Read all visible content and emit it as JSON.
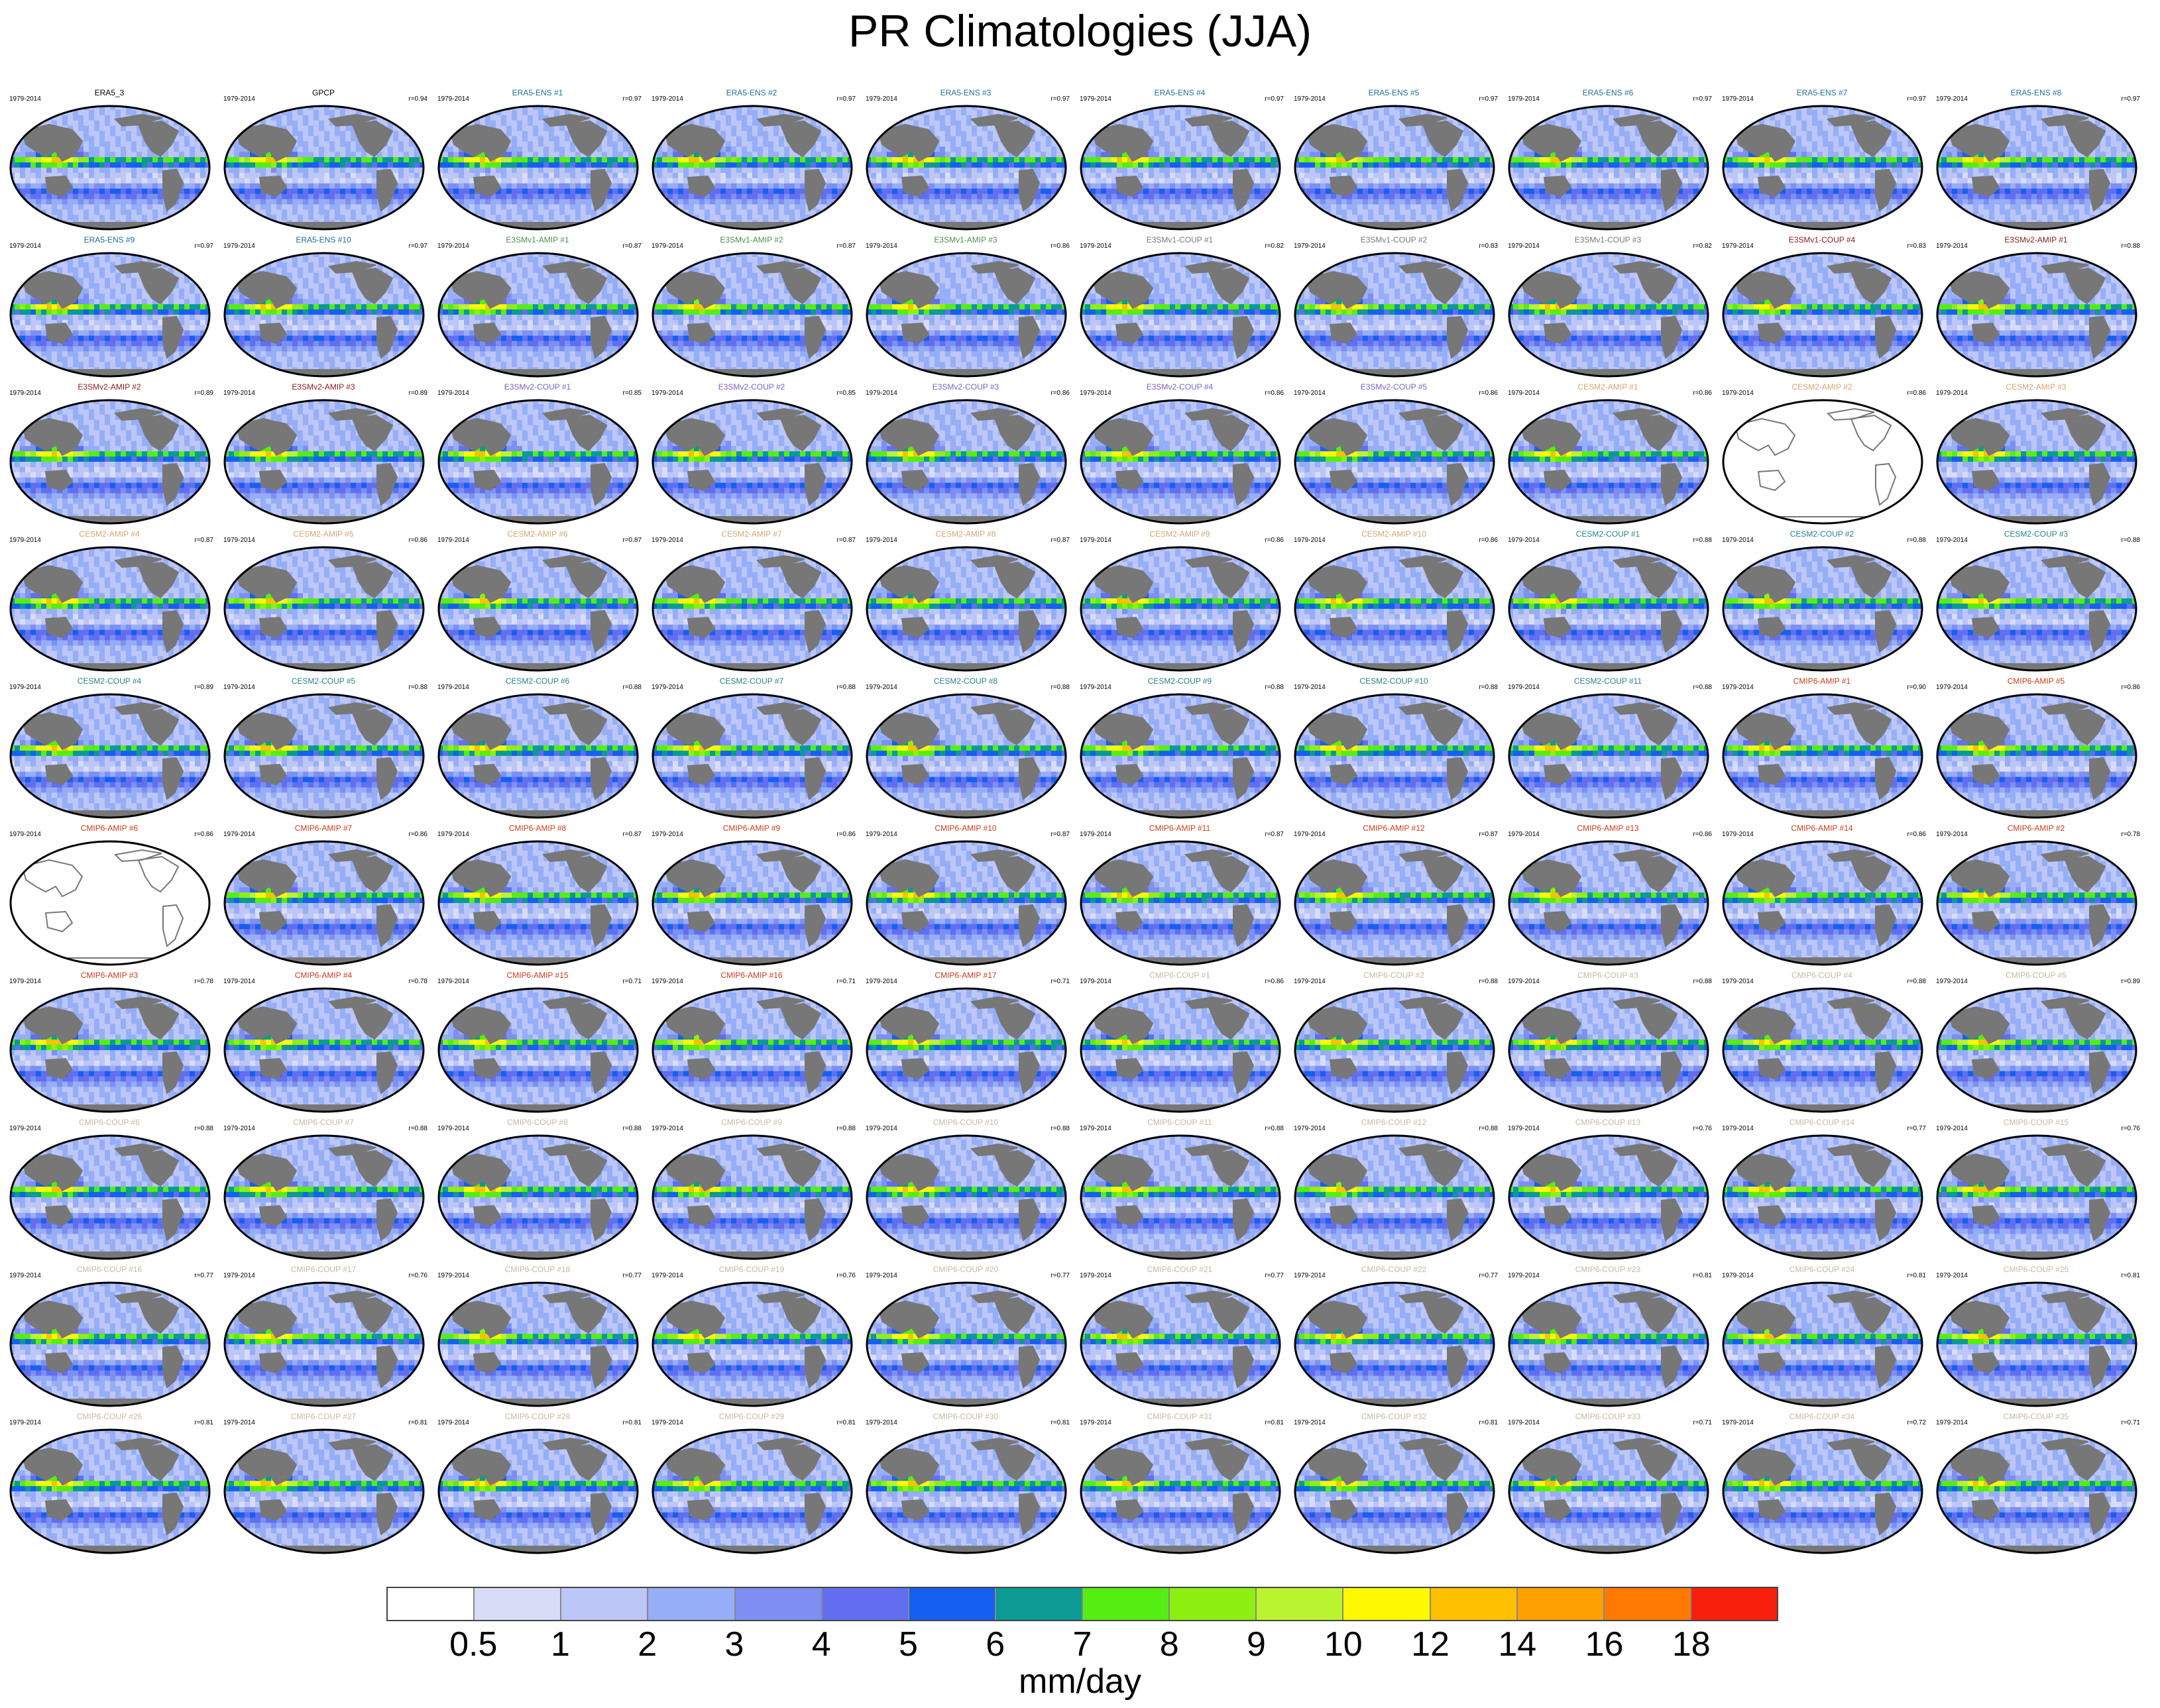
{
  "title": "PR Climatologies (JJA)",
  "period": "1979-2014",
  "panels": [
    {
      "label": "ERA5_3",
      "r": "",
      "color": "#000000",
      "blank": false
    },
    {
      "label": "GPCP",
      "r": "r=0.94",
      "color": "#000000",
      "blank": false
    },
    {
      "label": "ERA5-ENS   #1",
      "r": "r=0.97",
      "color": "#1f6f95",
      "blank": false
    },
    {
      "label": "ERA5-ENS   #2",
      "r": "r=0.97",
      "color": "#1f6f95",
      "blank": false
    },
    {
      "label": "ERA5-ENS   #3",
      "r": "r=0.97",
      "color": "#1f6f95",
      "blank": false
    },
    {
      "label": "ERA5-ENS   #4",
      "r": "r=0.97",
      "color": "#1f6f95",
      "blank": false
    },
    {
      "label": "ERA5-ENS   #5",
      "r": "r=0.97",
      "color": "#1f6f95",
      "blank": false
    },
    {
      "label": "ERA5-ENS   #6",
      "r": "r=0.97",
      "color": "#1f6f95",
      "blank": false
    },
    {
      "label": "ERA5-ENS   #7",
      "r": "r=0.97",
      "color": "#1f6f95",
      "blank": false
    },
    {
      "label": "ERA5-ENS   #8",
      "r": "r=0.97",
      "color": "#1f6f95",
      "blank": false
    },
    {
      "label": "ERA5-ENS   #9",
      "r": "r=0.97",
      "color": "#1f6f95",
      "blank": false
    },
    {
      "label": "ERA5-ENS   #10",
      "r": "r=0.97",
      "color": "#1f6f95",
      "blank": false
    },
    {
      "label": "E3SMv1-AMIP #1",
      "r": "r=0.87",
      "color": "#4f8f4f",
      "blank": false
    },
    {
      "label": "E3SMv1-AMIP #2",
      "r": "r=0.87",
      "color": "#4f8f4f",
      "blank": false
    },
    {
      "label": "E3SMv1-AMIP #3",
      "r": "r=0.86",
      "color": "#4f8f4f",
      "blank": false
    },
    {
      "label": "E3SMv1-COUP #1",
      "r": "r=0.82",
      "color": "#777777",
      "blank": false
    },
    {
      "label": "E3SMv1-COUP #2",
      "r": "r=0.83",
      "color": "#777777",
      "blank": false
    },
    {
      "label": "E3SMv1-COUP #3",
      "r": "r=0.82",
      "color": "#777777",
      "blank": false
    },
    {
      "label": "E3SMv1-COUP #4",
      "r": "r=0.83",
      "color": "#8b1a1a",
      "blank": false
    },
    {
      "label": "E3SMv2-AMIP #1",
      "r": "r=0.88",
      "color": "#8b1a1a",
      "blank": false
    },
    {
      "label": "E3SMv2-AMIP #2",
      "r": "r=0.89",
      "color": "#8b1a1a",
      "blank": false
    },
    {
      "label": "E3SMv2-AMIP #3",
      "r": "r=0.89",
      "color": "#8b1a1a",
      "blank": false
    },
    {
      "label": "E3SMv2-COUP #1",
      "r": "r=0.85",
      "color": "#7b5fc7",
      "blank": false
    },
    {
      "label": "E3SMv2-COUP #2",
      "r": "r=0.85",
      "color": "#7b5fc7",
      "blank": false
    },
    {
      "label": "E3SMv2-COUP #3",
      "r": "r=0.86",
      "color": "#7b5fc7",
      "blank": false
    },
    {
      "label": "E3SMv2-COUP #4",
      "r": "r=0.86",
      "color": "#7b5fc7",
      "blank": false
    },
    {
      "label": "E3SMv2-COUP #5",
      "r": "r=0.86",
      "color": "#7b5fc7",
      "blank": false
    },
    {
      "label": "CESM2-AMIP  #1",
      "r": "r=0.86",
      "color": "#d4a574",
      "blank": false
    },
    {
      "label": "CESM2-AMIP  #2",
      "r": "r=0.86",
      "color": "#d4a574",
      "blank": true
    },
    {
      "label": "CESM2-AMIP  #3",
      "r": "",
      "color": "#d4a574",
      "blank": false
    },
    {
      "label": "CESM2-AMIP  #4",
      "r": "r=0.87",
      "color": "#d4a574",
      "blank": false
    },
    {
      "label": "CESM2-AMIP  #5",
      "r": "r=0.86",
      "color": "#d4a574",
      "blank": false
    },
    {
      "label": "CESM2-AMIP  #6",
      "r": "r=0.87",
      "color": "#d4a574",
      "blank": false
    },
    {
      "label": "CESM2-AMIP  #7",
      "r": "r=0.87",
      "color": "#d4a574",
      "blank": false
    },
    {
      "label": "CESM2-AMIP  #8",
      "r": "r=0.87",
      "color": "#d4a574",
      "blank": false
    },
    {
      "label": "CESM2-AMIP  #9",
      "r": "r=0.86",
      "color": "#d4a574",
      "blank": false
    },
    {
      "label": "CESM2-AMIP  #10",
      "r": "r=0.86",
      "color": "#d4a574",
      "blank": false
    },
    {
      "label": "CESM2-COUP  #1",
      "r": "r=0.88",
      "color": "#2a7f8f",
      "blank": false
    },
    {
      "label": "CESM2-COUP  #2",
      "r": "r=0.88",
      "color": "#2a7f8f",
      "blank": false
    },
    {
      "label": "CESM2-COUP  #3",
      "r": "r=0.88",
      "color": "#2a7f8f",
      "blank": false
    },
    {
      "label": "CESM2-COUP  #4",
      "r": "r=0.89",
      "color": "#2a7f8f",
      "blank": false
    },
    {
      "label": "CESM2-COUP  #5",
      "r": "r=0.88",
      "color": "#2a7f8f",
      "blank": false
    },
    {
      "label": "CESM2-COUP  #6",
      "r": "r=0.88",
      "color": "#2a7f8f",
      "blank": false
    },
    {
      "label": "CESM2-COUP  #7",
      "r": "r=0.88",
      "color": "#2a7f8f",
      "blank": false
    },
    {
      "label": "CESM2-COUP  #8",
      "r": "r=0.88",
      "color": "#2a7f8f",
      "blank": false
    },
    {
      "label": "CESM2-COUP  #9",
      "r": "r=0.88",
      "color": "#2a7f8f",
      "blank": false
    },
    {
      "label": "CESM2-COUP  #10",
      "r": "r=0.88",
      "color": "#2a7f8f",
      "blank": false
    },
    {
      "label": "CESM2-COUP  #11",
      "r": "r=0.88",
      "color": "#2a7f8f",
      "blank": false
    },
    {
      "label": "CMIP6-AMIP  #1",
      "r": "r=0.90",
      "color": "#cc3a1a",
      "blank": false
    },
    {
      "label": "CMIP6-AMIP  #5",
      "r": "r=0.86",
      "color": "#cc3a1a",
      "blank": false
    },
    {
      "label": "CMIP6-AMIP  #6",
      "r": "r=0.86",
      "color": "#cc3a1a",
      "blank": true
    },
    {
      "label": "CMIP6-AMIP  #7",
      "r": "r=0.86",
      "color": "#cc3a1a",
      "blank": false
    },
    {
      "label": "CMIP6-AMIP  #8",
      "r": "r=0.87",
      "color": "#cc3a1a",
      "blank": false
    },
    {
      "label": "CMIP6-AMIP  #9",
      "r": "r=0.86",
      "color": "#cc3a1a",
      "blank": false
    },
    {
      "label": "CMIP6-AMIP  #10",
      "r": "r=0.87",
      "color": "#cc3a1a",
      "blank": false
    },
    {
      "label": "CMIP6-AMIP  #11",
      "r": "r=0.87",
      "color": "#cc3a1a",
      "blank": false
    },
    {
      "label": "CMIP6-AMIP  #12",
      "r": "r=0.87",
      "color": "#cc3a1a",
      "blank": false
    },
    {
      "label": "CMIP6-AMIP  #13",
      "r": "r=0.86",
      "color": "#cc3a1a",
      "blank": false
    },
    {
      "label": "CMIP6-AMIP  #14",
      "r": "r=0.86",
      "color": "#cc3a1a",
      "blank": false
    },
    {
      "label": "CMIP6-AMIP  #2",
      "r": "r=0.78",
      "color": "#cc3a1a",
      "blank": false
    },
    {
      "label": "CMIP6-AMIP  #3",
      "r": "r=0.78",
      "color": "#cc3a1a",
      "blank": false
    },
    {
      "label": "CMIP6-AMIP  #4",
      "r": "r=0.78",
      "color": "#cc3a1a",
      "blank": false
    },
    {
      "label": "CMIP6-AMIP  #15",
      "r": "r=0.71",
      "color": "#cc3a1a",
      "blank": false
    },
    {
      "label": "CMIP6-AMIP  #16",
      "r": "r=0.71",
      "color": "#cc3a1a",
      "blank": false
    },
    {
      "label": "CMIP6-AMIP  #17",
      "r": "r=0.71",
      "color": "#cc3a1a",
      "blank": false
    },
    {
      "label": "CMIP6-COUP  #1",
      "r": "r=0.86",
      "color": "#c9b7a0",
      "blank": false
    },
    {
      "label": "CMIP6-COUP  #2",
      "r": "r=0.88",
      "color": "#c9b7a0",
      "blank": false
    },
    {
      "label": "CMIP6-COUP  #3",
      "r": "r=0.88",
      "color": "#c9b7a0",
      "blank": false
    },
    {
      "label": "CMIP6-COUP  #4",
      "r": "r=0.88",
      "color": "#c9b7a0",
      "blank": false
    },
    {
      "label": "CMIP6-COUP  #5",
      "r": "r=0.89",
      "color": "#c9b7a0",
      "blank": false
    },
    {
      "label": "CMIP6-COUP  #6",
      "r": "r=0.88",
      "color": "#c9b7a0",
      "blank": false
    },
    {
      "label": "CMIP6-COUP  #7",
      "r": "r=0.88",
      "color": "#c9b7a0",
      "blank": false
    },
    {
      "label": "CMIP6-COUP  #8",
      "r": "r=0.88",
      "color": "#c9b7a0",
      "blank": false
    },
    {
      "label": "CMIP6-COUP  #9",
      "r": "r=0.88",
      "color": "#c9b7a0",
      "blank": false
    },
    {
      "label": "CMIP6-COUP  #10",
      "r": "r=0.88",
      "color": "#c9b7a0",
      "blank": false
    },
    {
      "label": "CMIP6-COUP  #11",
      "r": "r=0.88",
      "color": "#c9b7a0",
      "blank": false
    },
    {
      "label": "CMIP6-COUP  #12",
      "r": "r=0.88",
      "color": "#c9b7a0",
      "blank": false
    },
    {
      "label": "CMIP6-COUP  #13",
      "r": "r=0.76",
      "color": "#c9b7a0",
      "blank": false
    },
    {
      "label": "CMIP6-COUP  #14",
      "r": "r=0.77",
      "color": "#c9b7a0",
      "blank": false
    },
    {
      "label": "CMIP6-COUP  #15",
      "r": "r=0.76",
      "color": "#c9b7a0",
      "blank": false
    },
    {
      "label": "CMIP6-COUP  #16",
      "r": "r=0.77",
      "color": "#c9b7a0",
      "blank": false
    },
    {
      "label": "CMIP6-COUP  #17",
      "r": "r=0.76",
      "color": "#c9b7a0",
      "blank": false
    },
    {
      "label": "CMIP6-COUP  #18",
      "r": "r=0.77",
      "color": "#c9b7a0",
      "blank": false
    },
    {
      "label": "CMIP6-COUP  #19",
      "r": "r=0.76",
      "color": "#c9b7a0",
      "blank": false
    },
    {
      "label": "CMIP6-COUP  #20",
      "r": "r=0.77",
      "color": "#c9b7a0",
      "blank": false
    },
    {
      "label": "CMIP6-COUP  #21",
      "r": "r=0.77",
      "color": "#c9b7a0",
      "blank": false
    },
    {
      "label": "CMIP6-COUP  #22",
      "r": "r=0.77",
      "color": "#c9b7a0",
      "blank": false
    },
    {
      "label": "CMIP6-COUP  #23",
      "r": "r=0.81",
      "color": "#c9b7a0",
      "blank": false
    },
    {
      "label": "CMIP6-COUP  #24",
      "r": "r=0.81",
      "color": "#c9b7a0",
      "blank": false
    },
    {
      "label": "CMIP6-COUP  #25",
      "r": "r=0.81",
      "color": "#c9b7a0",
      "blank": false
    },
    {
      "label": "CMIP6-COUP  #26",
      "r": "r=0.81",
      "color": "#c9b7a0",
      "blank": false
    },
    {
      "label": "CMIP6-COUP  #27",
      "r": "r=0.81",
      "color": "#c9b7a0",
      "blank": false
    },
    {
      "label": "CMIP6-COUP  #28",
      "r": "r=0.81",
      "color": "#c9b7a0",
      "blank": false
    },
    {
      "label": "CMIP6-COUP  #29",
      "r": "r=0.81",
      "color": "#c9b7a0",
      "blank": false
    },
    {
      "label": "CMIP6-COUP  #30",
      "r": "r=0.81",
      "color": "#c9b7a0",
      "blank": false
    },
    {
      "label": "CMIP6-COUP  #31",
      "r": "r=0.81",
      "color": "#c9b7a0",
      "blank": false
    },
    {
      "label": "CMIP6-COUP  #32",
      "r": "r=0.81",
      "color": "#c9b7a0",
      "blank": false
    },
    {
      "label": "CMIP6-COUP  #33",
      "r": "r=0.71",
      "color": "#c9b7a0",
      "blank": false
    },
    {
      "label": "CMIP6-COUP  #34",
      "r": "r=0.72",
      "color": "#c9b7a0",
      "blank": false
    },
    {
      "label": "CMIP6-COUP  #35",
      "r": "r=0.71",
      "color": "#c9b7a0",
      "blank": false
    }
  ],
  "colorbar": {
    "colors": [
      "#ffffff",
      "#d8dcf7",
      "#bcc6f7",
      "#95aef7",
      "#7d8ff2",
      "#626ef0",
      "#1560f0",
      "#0b9a94",
      "#55ee12",
      "#8ef010",
      "#baf42e",
      "#fef803",
      "#ffc000",
      "#ffa000",
      "#ff7a00",
      "#f81f0c"
    ],
    "ticks": [
      "0.5",
      "1",
      "2",
      "3",
      "4",
      "5",
      "6",
      "7",
      "8",
      "9",
      "10",
      "12",
      "14",
      "16",
      "18"
    ],
    "units": "mm/day"
  }
}
